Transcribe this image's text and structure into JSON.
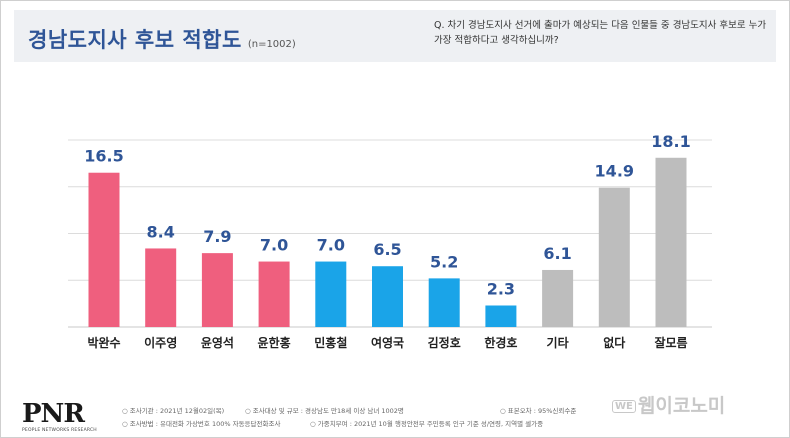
{
  "header": {
    "title": "경남도지사 후보 적합도",
    "sample": "(n=1002)",
    "question": "Q. 차기 경남도지사 선거에 출마가 예상되는 다음 인물들 중 경남도지사 후보로 누가 가장 적합하다고 생각하십니까?"
  },
  "chart_data": {
    "type": "bar",
    "categories": [
      "박완수",
      "이주영",
      "윤영석",
      "윤한홍",
      "민홍철",
      "여영국",
      "김정호",
      "한경호",
      "기타",
      "없다",
      "잘모름"
    ],
    "values": [
      16.5,
      8.4,
      7.9,
      7.0,
      7.0,
      6.5,
      5.2,
      2.3,
      6.1,
      14.9,
      18.1
    ],
    "ylim": [
      0,
      20
    ],
    "grid": true,
    "colors": [
      "#ef5f7e",
      "#ef5f7e",
      "#ef5f7e",
      "#ef5f7e",
      "#1aa4e8",
      "#1aa4e8",
      "#1aa4e8",
      "#1aa4e8",
      "#bdbdbd",
      "#bdbdbd",
      "#bdbdbd"
    ],
    "label_color": "#2f5597",
    "grid_color": "#dcdcdc"
  },
  "footer": {
    "logo": "PNR",
    "logo_sub": "PEOPLE NETWORKS RESEARCH",
    "line1a": "○ 조사기관 : 2021년 12월02일(목)",
    "line1b": "○ 조사대상 및 규모 : 경상남도 만18세 이상 남녀 1002명",
    "line1c": "○ 표본오차 : 95%신뢰수준",
    "line2a": "○ 조사방법 : 유대전화 가상번호 100% 자동응답전화조사",
    "line2b": "○ 가중치부여 : 2021년 10월 행정안전부 주민등록 인구 기준 성/연령, 지역별 셀가중",
    "watermark_badge": "WE",
    "watermark_text": "웹이코노미"
  }
}
